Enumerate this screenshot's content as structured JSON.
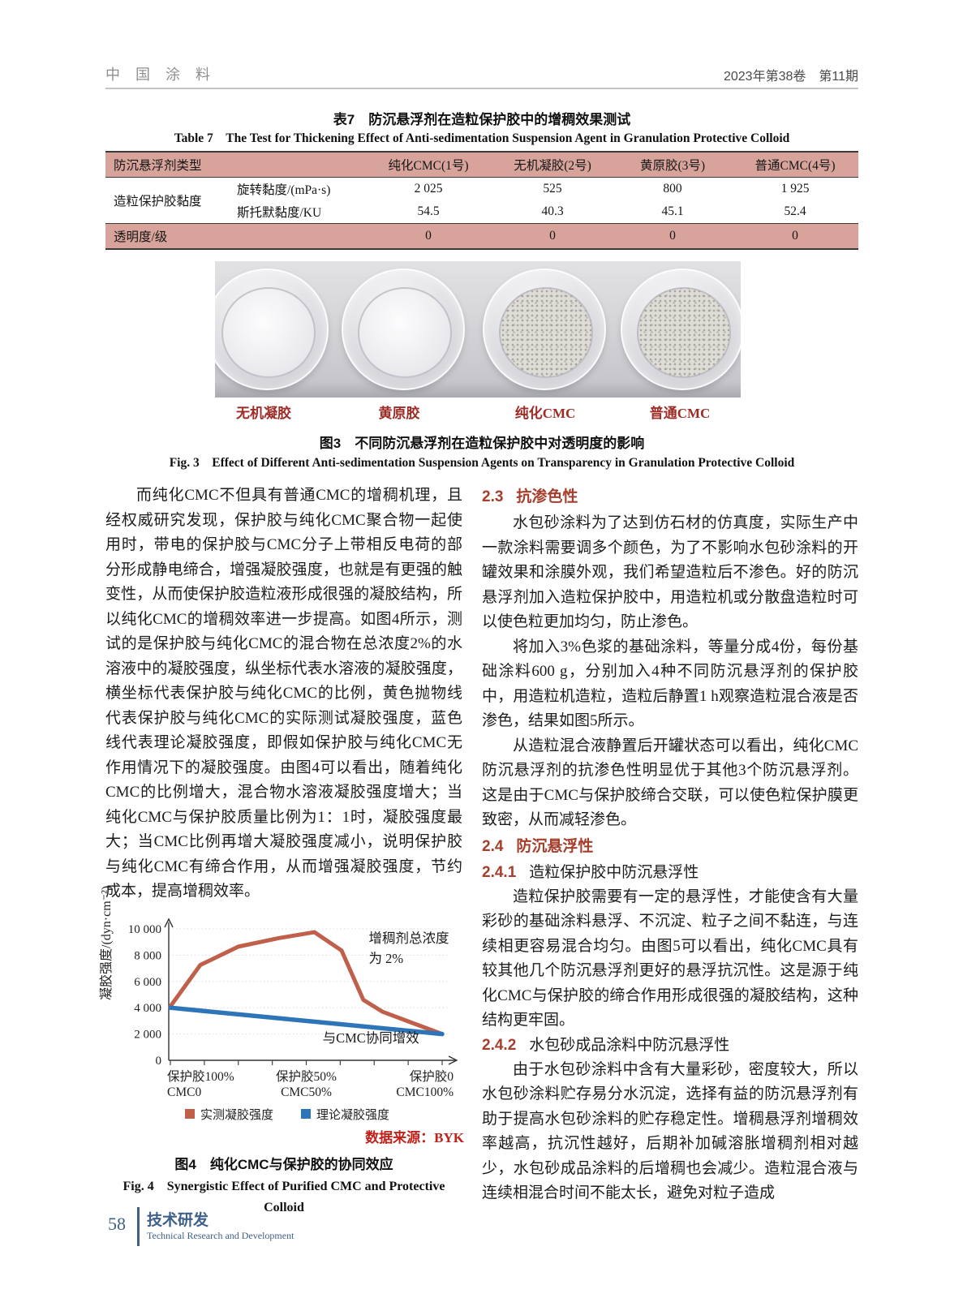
{
  "header": {
    "journal": "中 国 涂 料",
    "issue": "2023年第38卷　第11期"
  },
  "table7": {
    "title_zh": "表7　防沉悬浮剂在造粒保护胶中的增稠效果测试",
    "title_en": "Table 7　The Test for Thickening Effect of Anti-sedimentation Suspension Agent in Granulation Protective Colloid",
    "col_headers": [
      "防沉悬浮剂类型",
      "纯化CMC(1号)",
      "无机凝胶(2号)",
      "黄原胶(3号)",
      "普通CMC(4号)"
    ],
    "group_label": "造粒保护胶黏度",
    "rows": [
      {
        "label": "旋转黏度/(mPa·s)",
        "values": [
          "2 025",
          "525",
          "800",
          "1 925"
        ]
      },
      {
        "label": "斯托默黏度/KU",
        "values": [
          "54.5",
          "40.3",
          "45.1",
          "52.4"
        ]
      }
    ],
    "transparency_row": {
      "label": "透明度/级",
      "values": [
        "0",
        "0",
        "0",
        "0"
      ]
    }
  },
  "figure3": {
    "sample_labels": [
      "无机凝胶",
      "黄原胶",
      "纯化CMC",
      "普通CMC"
    ],
    "caption_zh": "图3　不同防沉悬浮剂在造粒保护胶中对透明度的影响",
    "caption_en": "Fig. 3　Effect of Different Anti-sedimentation Suspension Agents on Transparency in Granulation Protective Colloid"
  },
  "left_column": {
    "para1": "而纯化CMC不但具有普通CMC的增稠机理，且经权威研究发现，保护胶与纯化CMC聚合物一起使用时，带电的保护胶与CMC分子上带相反电荷的部分形成静电缔合，增强凝胶强度，也就是有更强的触变性，从而使保护胶造粒液形成很强的凝胶结构，所以纯化CMC的增稠效率进一步提高。如图4所示，测试的是保护胶与纯化CMC的混合物在总浓度2%的水溶液中的凝胶强度，纵坐标代表水溶液的凝胶强度，横坐标代表保护胶与纯化CMC的比例，黄色抛物线代表保护胶与纯化CMC的实际测试凝胶强度，蓝色线代表理论凝胶强度，即假如保护胶与纯化CMC无作用情况下的凝胶强度。由图4可以看出，随着纯化CMC的比例增大，混合物水溶液凝胶强度增大；当纯化CMC与保护胶质量比例为1：1时，凝胶强度最大；当CMC比例再增大凝胶强度减小，说明保护胶与纯化CMC有缔合作用，从而增强凝胶强度，节约成本，提高增稠效率。"
  },
  "chart_data": {
    "type": "line",
    "title": "",
    "xlabel": "",
    "ylabel": "凝胶强度/(dyn·cm⁻²)",
    "ylim": [
      0,
      10000
    ],
    "grid": true,
    "legend_position": "bottom",
    "y_ticks": [
      {
        "v": 0,
        "label": "0"
      },
      {
        "v": 2000,
        "label": "2 000"
      },
      {
        "v": 4000,
        "label": "4 000"
      },
      {
        "v": 6000,
        "label": "6 000"
      },
      {
        "v": 8000,
        "label": "8 000"
      },
      {
        "v": 10000,
        "label": "10 000"
      }
    ],
    "x_tick_count": 9,
    "x_axis_labels": [
      {
        "pos": 0,
        "line1": "保护胶100%",
        "line2": "CMC0"
      },
      {
        "pos": 0.5,
        "line1": "保护胶50%",
        "line2": "CMC50%"
      },
      {
        "pos": 1,
        "line1": "保护胶0",
        "line2": "CMC100%"
      }
    ],
    "series": [
      {
        "name": "实测凝胶强度",
        "color": "#c05f4a",
        "points": [
          [
            0,
            4100
          ],
          [
            0.11,
            7250
          ],
          [
            0.25,
            8650
          ],
          [
            0.4,
            9300
          ],
          [
            0.53,
            9750
          ],
          [
            0.63,
            8350
          ],
          [
            0.71,
            4600
          ],
          [
            0.78,
            3700
          ],
          [
            1,
            2000
          ]
        ]
      },
      {
        "name": "理论凝胶强度",
        "color": "#2e74b8",
        "points": [
          [
            0,
            4000
          ],
          [
            1,
            2000
          ]
        ]
      }
    ],
    "annotations": [
      {
        "text": "增稠剂总浓度",
        "x": 0.73,
        "y": 8950
      },
      {
        "text": "为 2%",
        "x": 0.73,
        "y": 7400
      },
      {
        "text": "与CMC协同增效",
        "x": 0.56,
        "y": 1350
      }
    ]
  },
  "figure4": {
    "source": "数据来源：BYK",
    "caption_zh": "图4　纯化CMC与保护胶的协同效应",
    "caption_en": "Fig. 4　Synergistic Effect of Purified CMC and Protective Colloid"
  },
  "right_column": {
    "s23_num": "2.3",
    "s23_title": "抗渗色性",
    "s23_p1": "水包砂涂料为了达到仿石材的仿真度，实际生产中一款涂料需要调多个颜色，为了不影响水包砂涂料的开罐效果和涂膜外观，我们希望造粒后不渗色。好的防沉悬浮剂加入造粒保护胶中，用造粒机或分散盘造粒时可以使色粒更加均匀，防止渗色。",
    "s23_p2": "将加入3%色浆的基础涂料，等量分成4份，每份基础涂料600 g，分别加入4种不同防沉悬浮剂的保护胶中，用造粒机造粒，造粒后静置1 h观察造粒混合液是否渗色，结果如图5所示。",
    "s23_p3": "从造粒混合液静置后开罐状态可以看出，纯化CMC防沉悬浮剂的抗渗色性明显优于其他3个防沉悬浮剂。这是由于CMC与保护胶缔合交联，可以使色粒保护膜更致密，从而减轻渗色。",
    "s24_num": "2.4",
    "s24_title": "防沉悬浮性",
    "s241_num": "2.4.1",
    "s241_title": "造粒保护胶中防沉悬浮性",
    "s241_p": "造粒保护胶需要有一定的悬浮性，才能使含有大量彩砂的基础涂料悬浮、不沉淀、粒子之间不黏连，与连续相更容易混合均匀。由图5可以看出，纯化CMC具有较其他几个防沉悬浮剂更好的悬浮抗沉性。这是源于纯化CMC与保护胶的缔合作用形成很强的凝胶结构，这种结构更牢固。",
    "s242_num": "2.4.2",
    "s242_title": "水包砂成品涂料中防沉悬浮性",
    "s242_p": "由于水包砂涂料中含有大量彩砂，密度较大，所以水包砂涂料贮存易分水沉淀，选择有益的防沉悬浮剂有助于提高水包砂涂料的贮存稳定性。增稠悬浮剂增稠效率越高，抗沉性越好，后期补加碱溶胀增稠剂相对越少，水包砂成品涂料的后增稠也会减少。造粒混合液与连续相混合时间不能太长，避免对粒子造成"
  },
  "footer": {
    "page_number": "58",
    "section_zh": "技术研发",
    "section_en": "Technical Research and Development"
  }
}
